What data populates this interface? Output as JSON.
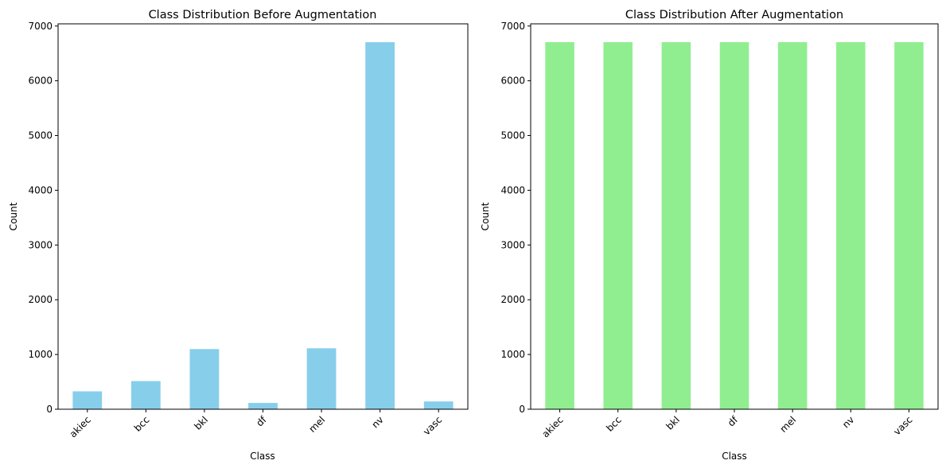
{
  "chart_data": [
    {
      "type": "bar",
      "title": "Class Distribution Before Augmentation",
      "xlabel": "Class",
      "ylabel": "Count",
      "categories": [
        "akiec",
        "bcc",
        "bkl",
        "df",
        "mel",
        "nv",
        "vasc"
      ],
      "values": [
        327,
        514,
        1099,
        115,
        1113,
        6705,
        142
      ],
      "ylim": [
        0,
        7040
      ],
      "yticks": [
        "0",
        "1000",
        "2000",
        "3000",
        "4000",
        "5000",
        "6000",
        "7000"
      ],
      "bar_color": "#87ceeb",
      "grid": false
    },
    {
      "type": "bar",
      "title": "Class Distribution After Augmentation",
      "xlabel": "Class",
      "ylabel": "Count",
      "categories": [
        "akiec",
        "bcc",
        "bkl",
        "df",
        "mel",
        "nv",
        "vasc"
      ],
      "values": [
        6705,
        6705,
        6705,
        6705,
        6705,
        6705,
        6705
      ],
      "ylim": [
        0,
        7040
      ],
      "yticks": [
        "0",
        "1000",
        "2000",
        "3000",
        "4000",
        "5000",
        "6000",
        "7000"
      ],
      "bar_color": "#90ee90",
      "grid": false
    }
  ]
}
